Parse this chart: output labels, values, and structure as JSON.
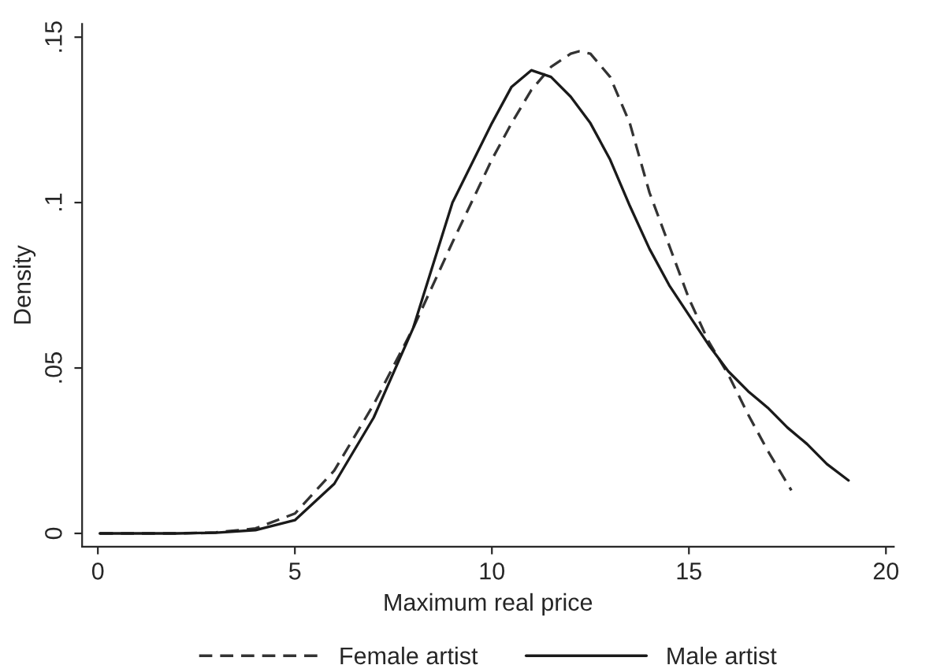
{
  "chart_data": {
    "type": "line",
    "xlabel": "Maximum real price",
    "ylabel": "Density",
    "xlim": [
      -0.4,
      20.2
    ],
    "ylim": [
      -0.004,
      0.154
    ],
    "xticks": [
      0,
      5,
      10,
      15,
      20
    ],
    "yticks": [
      0,
      {
        "value": 0.05,
        "label": ".05"
      },
      {
        "value": 0.1,
        "label": ".1"
      },
      {
        "value": 0.15,
        "label": ".15"
      }
    ],
    "grid": false,
    "legend": "bottom",
    "marker": "none",
    "series": [
      {
        "name": "Female artist",
        "color": "#333333",
        "line_style": "dashed",
        "x": [
          0.05,
          2,
          3,
          4,
          5,
          6,
          7,
          8,
          9,
          10,
          10.5,
          11,
          11.5,
          12,
          12.2,
          12.5,
          13,
          13.5,
          14,
          14.5,
          15,
          15.5,
          16,
          16.5,
          17,
          17.6
        ],
        "values": [
          0,
          0,
          0.0003,
          0.0015,
          0.006,
          0.019,
          0.039,
          0.062,
          0.088,
          0.113,
          0.124,
          0.134,
          0.141,
          0.145,
          0.1457,
          0.145,
          0.138,
          0.124,
          0.103,
          0.087,
          0.071,
          0.058,
          0.048,
          0.036,
          0.025,
          0.013
        ]
      },
      {
        "name": "Male artist",
        "color": "#1a1a1a",
        "line_style": "solid",
        "x": [
          0.05,
          2,
          3,
          4,
          5,
          6,
          7,
          8,
          9,
          10,
          10.5,
          11,
          11.5,
          12,
          12.5,
          13,
          13.5,
          14,
          14.5,
          15,
          15.5,
          16,
          16.5,
          17,
          17.5,
          18,
          18.5,
          19.05
        ],
        "values": [
          0,
          0,
          0.0002,
          0.001,
          0.004,
          0.015,
          0.035,
          0.062,
          0.1,
          0.124,
          0.135,
          0.14,
          0.138,
          0.132,
          0.124,
          0.113,
          0.099,
          0.086,
          0.075,
          0.066,
          0.057,
          0.049,
          0.043,
          0.038,
          0.032,
          0.027,
          0.021,
          0.016
        ]
      }
    ]
  }
}
